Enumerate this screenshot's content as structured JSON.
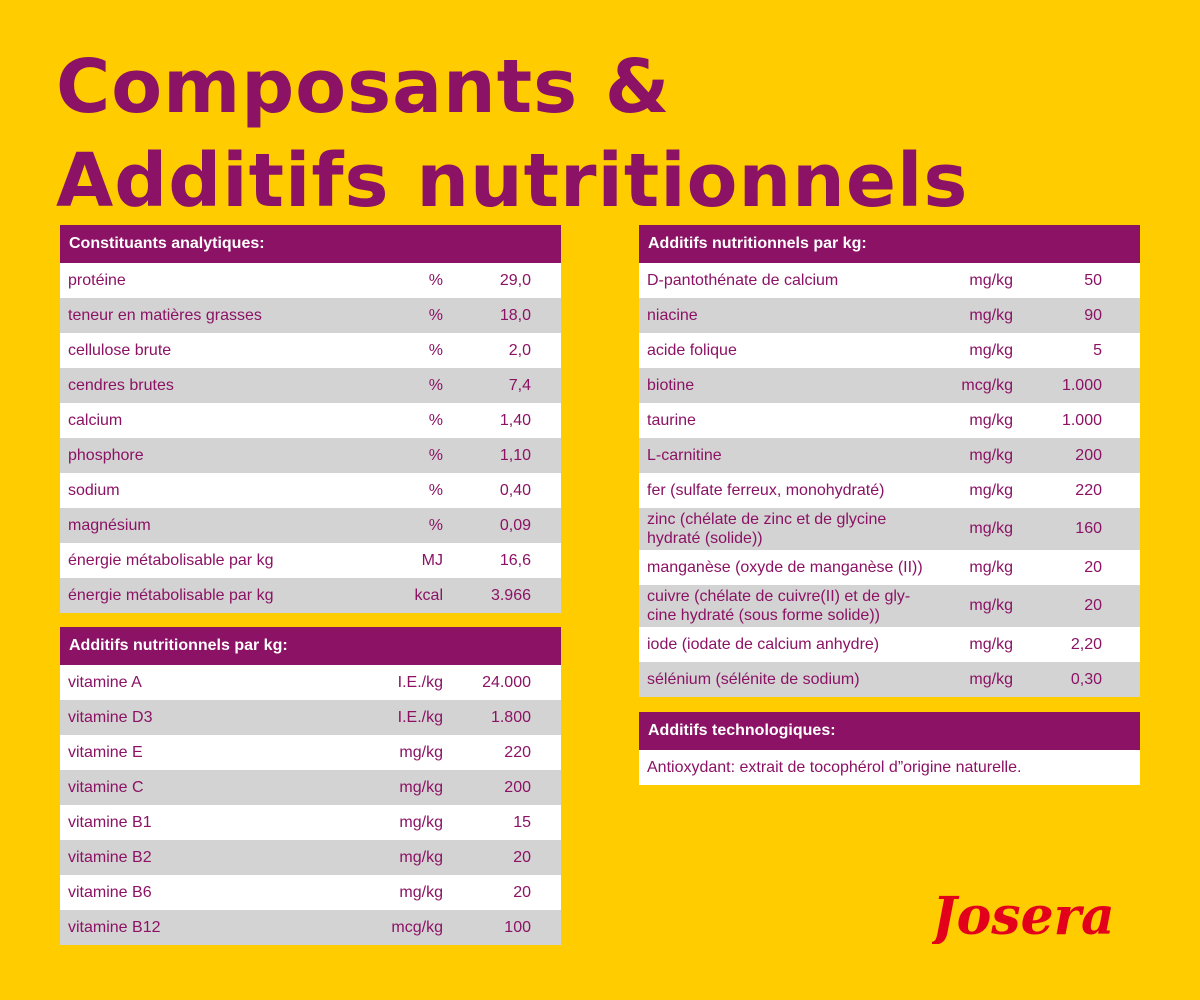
{
  "title": {
    "line1": "Composants &",
    "line2": "Additifs nutritionnels"
  },
  "analytical": {
    "header": "Constituants analytiques:",
    "rows": [
      {
        "name": "protéine",
        "unit": "%",
        "value": "29,0"
      },
      {
        "name": "teneur en matières grasses",
        "unit": "%",
        "value": "18,0"
      },
      {
        "name": "cellulose brute",
        "unit": "%",
        "value": "2,0"
      },
      {
        "name": "cendres brutes",
        "unit": "%",
        "value": "7,4"
      },
      {
        "name": "calcium",
        "unit": "%",
        "value": "1,40"
      },
      {
        "name": "phosphore",
        "unit": "%",
        "value": "1,10"
      },
      {
        "name": "sodium",
        "unit": "%",
        "value": "0,40"
      },
      {
        "name": "magnésium",
        "unit": "%",
        "value": "0,09"
      },
      {
        "name": "énergie métabolisable par kg",
        "unit": "MJ",
        "value": "16,6"
      },
      {
        "name": "énergie métabolisable par kg",
        "unit": "kcal",
        "value": "3.966"
      }
    ]
  },
  "vitamins": {
    "header": "Additifs nutritionnels par kg:",
    "rows": [
      {
        "name": "vitamine A",
        "unit": "I.E./kg",
        "value": "24.000"
      },
      {
        "name": "vitamine D3",
        "unit": "I.E./kg",
        "value": "1.800"
      },
      {
        "name": "vitamine E",
        "unit": "mg/kg",
        "value": "220"
      },
      {
        "name": "vitamine C",
        "unit": "mg/kg",
        "value": "200"
      },
      {
        "name": "vitamine B1",
        "unit": "mg/kg",
        "value": "15"
      },
      {
        "name": "vitamine B2",
        "unit": "mg/kg",
        "value": "20"
      },
      {
        "name": "vitamine B6",
        "unit": "mg/kg",
        "value": "20"
      },
      {
        "name": "vitamine B12",
        "unit": "mcg/kg",
        "value": "100"
      }
    ]
  },
  "additives": {
    "header": "Additifs nutritionnels par kg:",
    "rows": [
      {
        "name": "D-pantothénate de calcium",
        "unit": "mg/kg",
        "value": "50"
      },
      {
        "name": "niacine",
        "unit": "mg/kg",
        "value": "90"
      },
      {
        "name": "acide folique",
        "unit": "mg/kg",
        "value": "5"
      },
      {
        "name": "biotine",
        "unit": "mcg/kg",
        "value": "1.000"
      },
      {
        "name": "taurine",
        "unit": "mg/kg",
        "value": "1.000"
      },
      {
        "name": "L-carnitine",
        "unit": "mg/kg",
        "value": "200"
      },
      {
        "name": "fer (sulfate ferreux, monohydraté)",
        "unit": "mg/kg",
        "value": "220"
      },
      {
        "name": "zinc (chélate de zinc et de glycine hydraté (solide))",
        "unit": "mg/kg",
        "value": "160"
      },
      {
        "name": "manganèse (oxyde de manganèse (II))",
        "unit": "mg/kg",
        "value": "20"
      },
      {
        "name": "cuivre (chélate de cuivre(II) et de gly-cine hydraté (sous forme solide))",
        "unit": "mg/kg",
        "value": "20"
      },
      {
        "name": "iode (iodate de calcium anhydre)",
        "unit": "mg/kg",
        "value": "2,20"
      },
      {
        "name": "sélénium (sélénite de sodium)",
        "unit": "mg/kg",
        "value": "0,30"
      }
    ]
  },
  "technological": {
    "header": "Additifs technologiques:",
    "text": "Antioxydant: extrait de tocophérol d”origine naturelle."
  },
  "logo": {
    "text": "Josera"
  },
  "colors": {
    "background": "#FFCC00",
    "accent": "#8B1264",
    "logo": "#E3001B",
    "row_alt": "#D3D3D3"
  }
}
